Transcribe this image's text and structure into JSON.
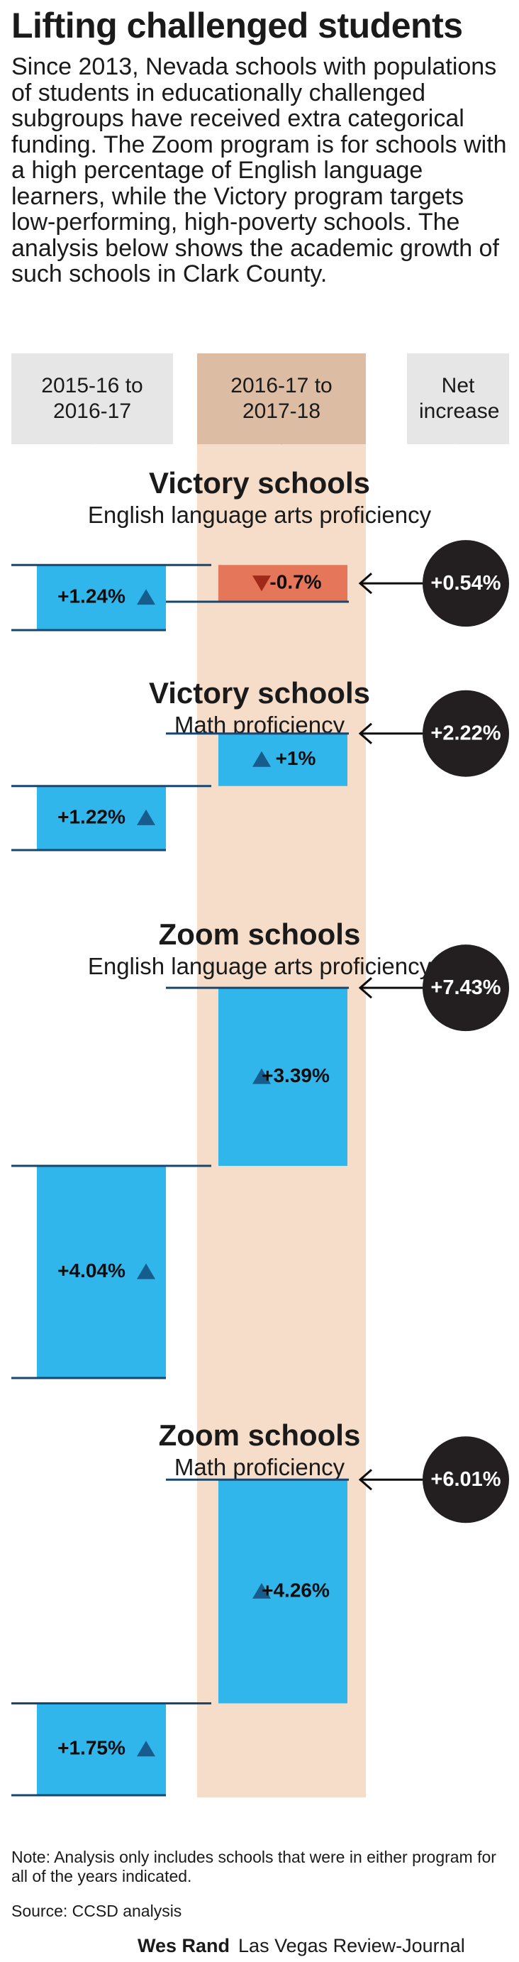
{
  "header": {
    "title": "Lifting challenged students",
    "intro": "Since 2013, Nevada schools with populations of students in educationally challenged subgroups have received extra categorical funding. The Zoom program is for schools with a high percentage of English language learners, while the Victory program targets low-performing, high-poverty schools. The analysis below shows the academic growth of such schools in Clark County."
  },
  "columns": {
    "col1": "2015-16 to 2016-17",
    "col2": "2016-17 to 2017-18",
    "col3": "Net increase"
  },
  "colors": {
    "positive_bar": "#30b6ea",
    "negative_bar": "#e5765a",
    "up_arrow": "#165d8e",
    "down_arrow": "#9e2a17",
    "highlight_band": "#f5ddca",
    "header_gray": "#e6e6e7",
    "header_tan": "#dcbca3",
    "baseline": "#17476e",
    "net_circle": "#231f20"
  },
  "chart_data": [
    {
      "type": "bar",
      "title": "Victory schools",
      "subtitle": "English language arts proficiency",
      "categories": [
        "2015-16 to 2016-17",
        "2016-17 to 2017-18"
      ],
      "values": [
        1.24,
        -0.7
      ],
      "labels": [
        "+1.24%",
        "-0.7%"
      ],
      "net": 0.54,
      "net_label": "+0.54%"
    },
    {
      "type": "bar",
      "title": "Victory schools",
      "subtitle": "Math proficiency",
      "categories": [
        "2015-16 to 2016-17",
        "2016-17 to 2017-18"
      ],
      "values": [
        1.22,
        1.0
      ],
      "labels": [
        "+1.22%",
        "+1%"
      ],
      "net": 2.22,
      "net_label": "+2.22%"
    },
    {
      "type": "bar",
      "title": "Zoom schools",
      "subtitle": "English language arts proficiency",
      "categories": [
        "2015-16 to 2016-17",
        "2016-17 to 2017-18"
      ],
      "values": [
        4.04,
        3.39
      ],
      "labels": [
        "+4.04%",
        "+3.39%"
      ],
      "net": 7.43,
      "net_label": "+7.43%"
    },
    {
      "type": "bar",
      "title": "Zoom schools",
      "subtitle": "Math proficiency",
      "categories": [
        "2015-16 to 2016-17",
        "2016-17 to 2017-18"
      ],
      "values": [
        1.75,
        4.26
      ],
      "labels": [
        "+1.75%",
        "+4.26%"
      ],
      "net": 6.01,
      "net_label": "+6.01%"
    }
  ],
  "footer": {
    "note": "Note: Analysis only includes schools that were in either program for all of the years indicated.",
    "source": "Source: CCSD analysis",
    "credit_name": "Wes Rand",
    "credit_org": "Las Vegas Review-Journal"
  }
}
